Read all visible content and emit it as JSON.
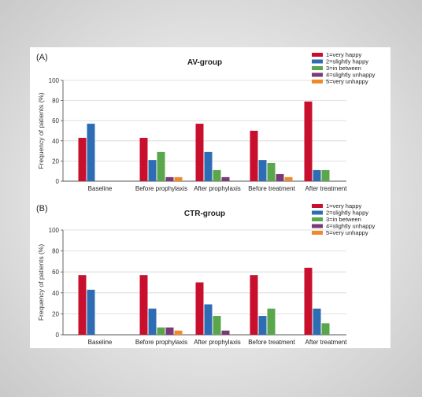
{
  "colors": {
    "1": "#c8102e",
    "2": "#2e6db4",
    "3": "#5aa64a",
    "4": "#7a3a78",
    "5": "#ef8a2b"
  },
  "chart_data": [
    {
      "type": "bar",
      "panel_label": "(A)",
      "title": "AV-group",
      "ylabel": "Frequency of patients (%)",
      "ylim": [
        0,
        100
      ],
      "yticks": [
        0,
        20,
        40,
        60,
        80,
        100
      ],
      "grid": true,
      "legend_position": "top-right",
      "categories": [
        "Baseline",
        "Before prophylaxis",
        "After prophylaxis",
        "Before treatment",
        "After treatment"
      ],
      "series": [
        {
          "name": "1=very happy",
          "color_key": "1",
          "values": [
            43,
            43,
            57,
            50,
            79
          ]
        },
        {
          "name": "2=slightly happy",
          "color_key": "2",
          "values": [
            57,
            21,
            29,
            21,
            11
          ]
        },
        {
          "name": "3=in between",
          "color_key": "3",
          "values": [
            0,
            29,
            11,
            18,
            11
          ]
        },
        {
          "name": "4=slightly unhappy",
          "color_key": "4",
          "values": [
            0,
            4,
            4,
            7,
            0
          ]
        },
        {
          "name": "5=very unhappy",
          "color_key": "5",
          "values": [
            0,
            4,
            0,
            4,
            0
          ]
        }
      ]
    },
    {
      "type": "bar",
      "panel_label": "(B)",
      "title": "CTR-group",
      "ylabel": "Frequency of patients (%)",
      "ylim": [
        0,
        100
      ],
      "yticks": [
        0,
        20,
        40,
        60,
        80,
        100
      ],
      "grid": true,
      "legend_position": "top-right",
      "categories": [
        "Baseline",
        "Before prophylaxis",
        "After prophylaxis",
        "Before treatment",
        "After treatment"
      ],
      "series": [
        {
          "name": "1=very happy",
          "color_key": "1",
          "values": [
            57,
            57,
            50,
            57,
            64
          ]
        },
        {
          "name": "2=slightly happy",
          "color_key": "2",
          "values": [
            43,
            25,
            29,
            18,
            25
          ]
        },
        {
          "name": "3=in between",
          "color_key": "3",
          "values": [
            0,
            7,
            18,
            25,
            11
          ]
        },
        {
          "name": "4=slightly unhappy",
          "color_key": "4",
          "values": [
            0,
            7,
            4,
            0,
            0
          ]
        },
        {
          "name": "5=very unhappy",
          "color_key": "5",
          "values": [
            0,
            4,
            0,
            0,
            0
          ]
        }
      ]
    }
  ]
}
